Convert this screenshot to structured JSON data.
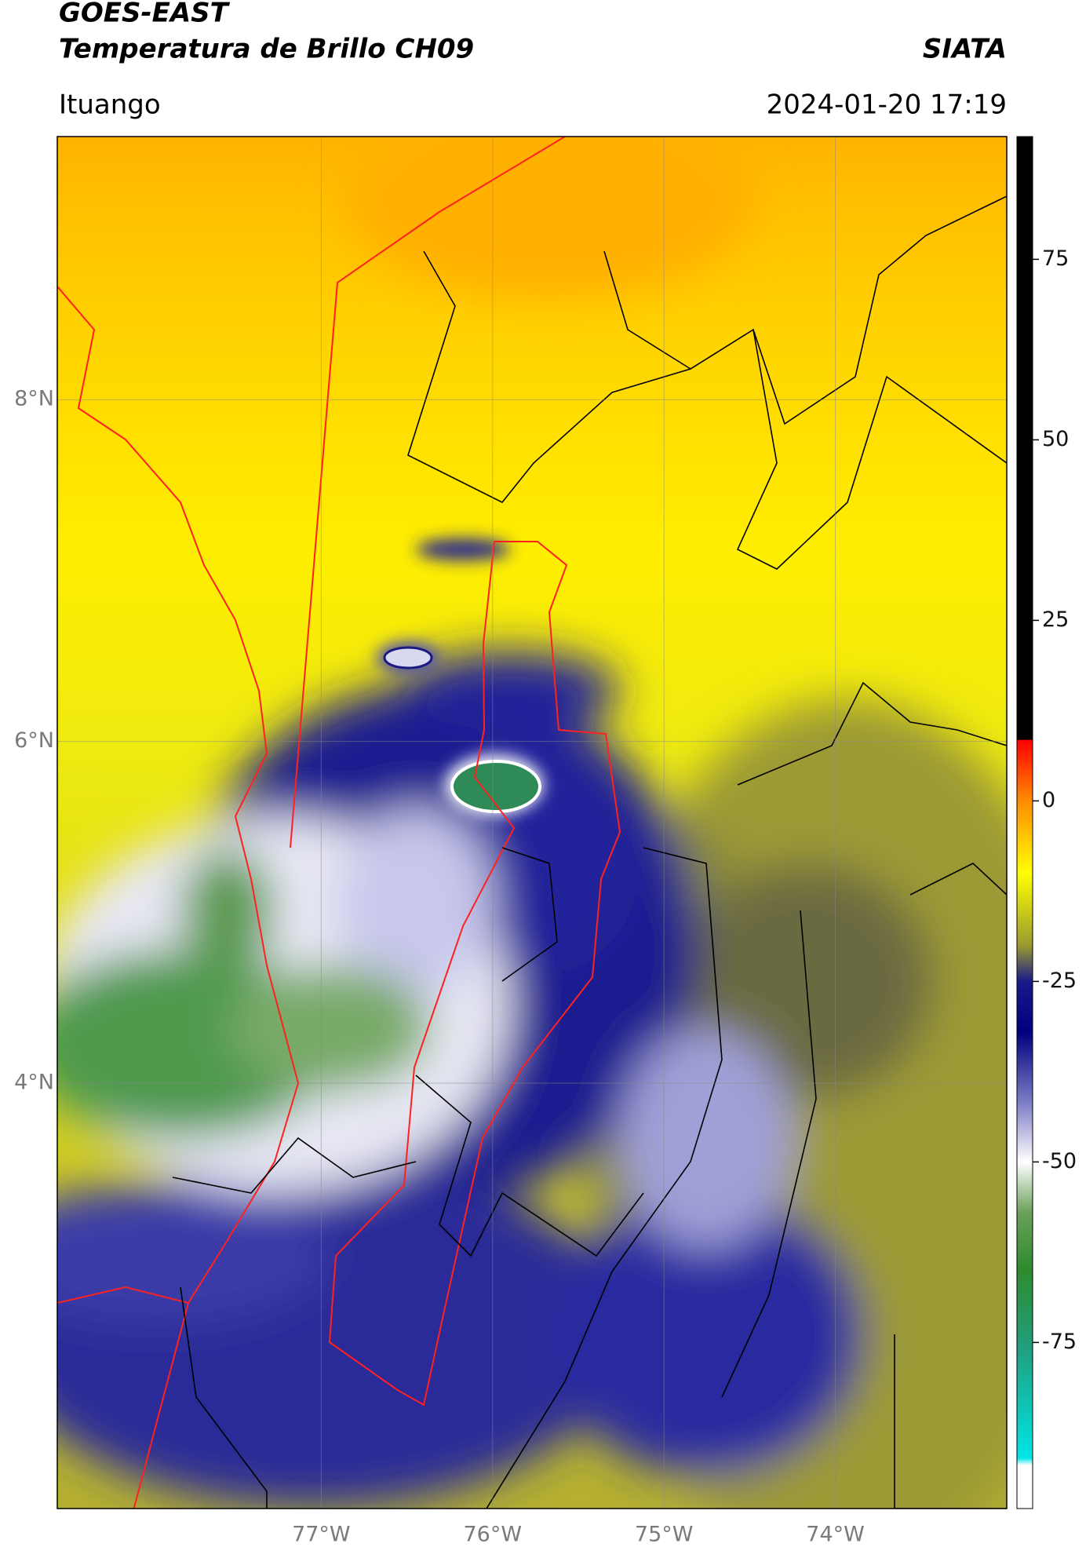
{
  "header": {
    "title": "GOES-EAST",
    "subtitle": "Temperatura de Brillo CH09",
    "organization": "SIATA",
    "location": "Ituango",
    "datetime": "2024-01-20 17:19"
  },
  "map": {
    "xlim": [
      -78.54,
      -73.0
    ],
    "ylim": [
      1.51,
      9.54
    ],
    "xticks": [
      {
        "value": -77,
        "label": "77°W"
      },
      {
        "value": -76,
        "label": "76°W"
      },
      {
        "value": -75,
        "label": "75°W"
      },
      {
        "value": -74,
        "label": "74°W"
      }
    ],
    "yticks": [
      {
        "value": 8,
        "label": "8°N"
      },
      {
        "value": 6,
        "label": "6°N"
      },
      {
        "value": 4,
        "label": "4°N"
      }
    ],
    "grid": true
  },
  "colorbar": {
    "lim": [
      -98,
      92
    ],
    "ticks": [
      75,
      50,
      25,
      0,
      -25,
      -50,
      -75
    ],
    "stops": [
      {
        "value": 92,
        "color": "#000000"
      },
      {
        "value": 8.5,
        "color": "#000000"
      },
      {
        "value": 8.4,
        "color": "#ff0000"
      },
      {
        "value": 0,
        "color": "#ff8c00"
      },
      {
        "value": -10,
        "color": "#ffff00"
      },
      {
        "value": -20,
        "color": "#9a9a30"
      },
      {
        "value": -25,
        "color": "#1a1a8a"
      },
      {
        "value": -32,
        "color": "#000080"
      },
      {
        "value": -42,
        "color": "#8080c8"
      },
      {
        "value": -50,
        "color": "#ffffff"
      },
      {
        "value": -57,
        "color": "#6aa05a"
      },
      {
        "value": -65,
        "color": "#2e8b2e"
      },
      {
        "value": -76,
        "color": "#20a080"
      },
      {
        "value": -91,
        "color": "#00e5e5"
      },
      {
        "value": -92,
        "color": "#ffffff"
      },
      {
        "value": -98,
        "color": "#ffffff"
      }
    ]
  }
}
